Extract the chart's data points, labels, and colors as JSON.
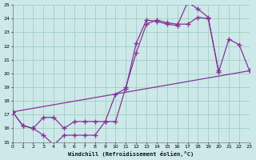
{
  "xlabel": "Windchill (Refroidissement éolien,°C)",
  "bg_color": "#cce8e8",
  "grid_color": "#99ccbb",
  "line_color": "#883399",
  "xlim": [
    0,
    23
  ],
  "ylim": [
    15,
    25
  ],
  "xticks": [
    0,
    1,
    2,
    3,
    4,
    5,
    6,
    7,
    8,
    9,
    10,
    11,
    12,
    13,
    14,
    15,
    16,
    17,
    18,
    19,
    20,
    21,
    22,
    23
  ],
  "yticks": [
    15,
    16,
    17,
    18,
    19,
    20,
    21,
    22,
    23,
    24,
    25
  ],
  "curve1_x": [
    0,
    1,
    2,
    3,
    4,
    5,
    6,
    7,
    8,
    9,
    10,
    11,
    12,
    13,
    14,
    15,
    16,
    17,
    18,
    19,
    20,
    21,
    22,
    23
  ],
  "curve1_y": [
    17.2,
    16.2,
    16.0,
    15.5,
    14.8,
    15.5,
    15.5,
    15.5,
    15.5,
    16.5,
    18.5,
    18.9,
    22.2,
    23.9,
    23.8,
    23.6,
    23.5,
    25.2,
    24.7,
    24.1,
    20.1,
    22.5,
    22.1,
    20.2
  ],
  "curve2_x": [
    0,
    1,
    2,
    3,
    4,
    5,
    6,
    7,
    8,
    9,
    10,
    11,
    12,
    13,
    14,
    15,
    16,
    17,
    18,
    19,
    20
  ],
  "curve2_y": [
    17.2,
    16.2,
    16.0,
    16.8,
    16.8,
    16.0,
    16.5,
    16.5,
    16.5,
    16.5,
    16.5,
    19.0,
    21.5,
    23.6,
    23.9,
    23.7,
    23.6,
    23.6,
    24.1,
    24.0,
    20.2
  ],
  "curve3_x": [
    0,
    23
  ],
  "curve3_y": [
    17.2,
    20.2
  ]
}
